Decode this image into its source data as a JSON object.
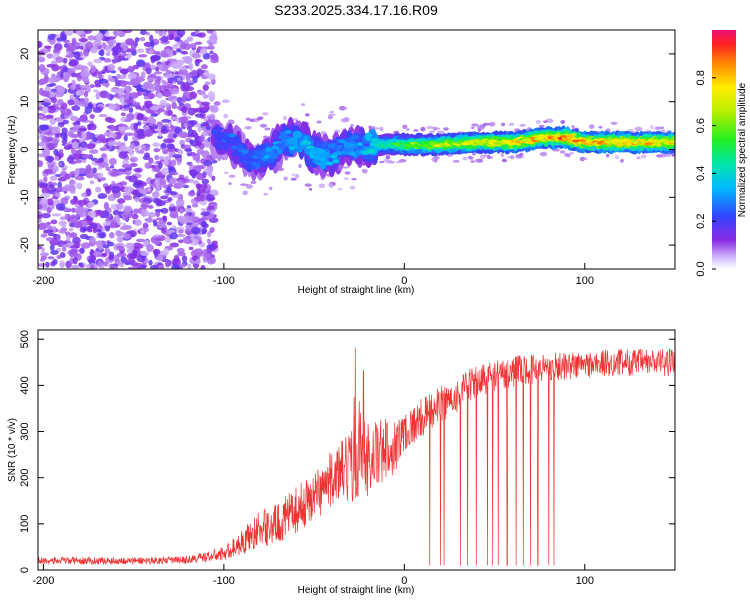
{
  "chart_data": [
    {
      "type": "heatmap",
      "title": "S233.2025.334.17.16.R09",
      "xlabel": "Height of straight line (km)",
      "ylabel": "Frequency (Hz)",
      "xlim": [
        -203,
        150
      ],
      "ylim": [
        -25,
        25
      ],
      "xticks": [
        -200,
        -100,
        0,
        100
      ],
      "yticks": [
        -20,
        -10,
        0,
        10,
        20
      ],
      "colorbar": {
        "label": "Normalized spectral amplitude",
        "range": [
          0,
          1
        ],
        "ticks": [
          0.0,
          0.2,
          0.4,
          0.6,
          0.8
        ]
      },
      "noise_region_x": [
        -203,
        -105
      ],
      "ridge": [
        {
          "x": -105,
          "y": 3,
          "amp": 0.2
        },
        {
          "x": -95,
          "y": 1,
          "amp": 0.25
        },
        {
          "x": -85,
          "y": -2,
          "amp": 0.25
        },
        {
          "x": -75,
          "y": -1,
          "amp": 0.3
        },
        {
          "x": -65,
          "y": 2,
          "amp": 0.3
        },
        {
          "x": -55,
          "y": 1,
          "amp": 0.35
        },
        {
          "x": -45,
          "y": -2,
          "amp": 0.35
        },
        {
          "x": -35,
          "y": 0,
          "amp": 0.3
        },
        {
          "x": -25,
          "y": 1,
          "amp": 0.3
        },
        {
          "x": -15,
          "y": 1,
          "amp": 0.4
        },
        {
          "x": 0,
          "y": 1,
          "amp": 0.55
        },
        {
          "x": 20,
          "y": 1,
          "amp": 0.65
        },
        {
          "x": 40,
          "y": 1.5,
          "amp": 0.7
        },
        {
          "x": 60,
          "y": 1.5,
          "amp": 0.75
        },
        {
          "x": 80,
          "y": 2.5,
          "amp": 0.8
        },
        {
          "x": 90,
          "y": 2.5,
          "amp": 0.85
        },
        {
          "x": 100,
          "y": 1.5,
          "amp": 0.8
        },
        {
          "x": 120,
          "y": 1.5,
          "amp": 0.8
        },
        {
          "x": 150,
          "y": 1.5,
          "amp": 0.75
        }
      ]
    },
    {
      "type": "line",
      "title": "",
      "xlabel": "Height of straight line (km)",
      "ylabel": "SNR (10 * v/v)",
      "xlim": [
        -203,
        150
      ],
      "ylim": [
        0,
        520
      ],
      "xticks": [
        -200,
        -100,
        0,
        100
      ],
      "yticks": [
        0,
        100,
        200,
        300,
        400,
        500
      ],
      "series": [
        {
          "name": "SNR",
          "color": "#ee3333",
          "envelope": {
            "x": [
              -203,
              -180,
              -150,
              -120,
              -100,
              -90,
              -80,
              -70,
              -60,
              -50,
              -40,
              -30,
              -25,
              -20,
              -15,
              -10,
              -5,
              0,
              10,
              20,
              30,
              40,
              60,
              80,
              100,
              120,
              150
            ],
            "y": [
              20,
              20,
              20,
              22,
              35,
              60,
              90,
              100,
              130,
              160,
              200,
              220,
              250,
              240,
              250,
              260,
              270,
              300,
              330,
              360,
              380,
              410,
              430,
              440,
              445,
              450,
              450
            ]
          },
          "spread": {
            "x": [
              -203,
              -120,
              -100,
              -80,
              -60,
              -40,
              -25,
              -10,
              0,
              20,
              50,
              100,
              150
            ],
            "y": [
              8,
              8,
              15,
              40,
              50,
              60,
              90,
              70,
              45,
              40,
              35,
              30,
              30
            ]
          },
          "dropouts_x": [
            14,
            20,
            22,
            31,
            35,
            40,
            46,
            49,
            52,
            57,
            62,
            66,
            70,
            74,
            80,
            83
          ],
          "dropout_min": 10
        }
      ]
    }
  ]
}
